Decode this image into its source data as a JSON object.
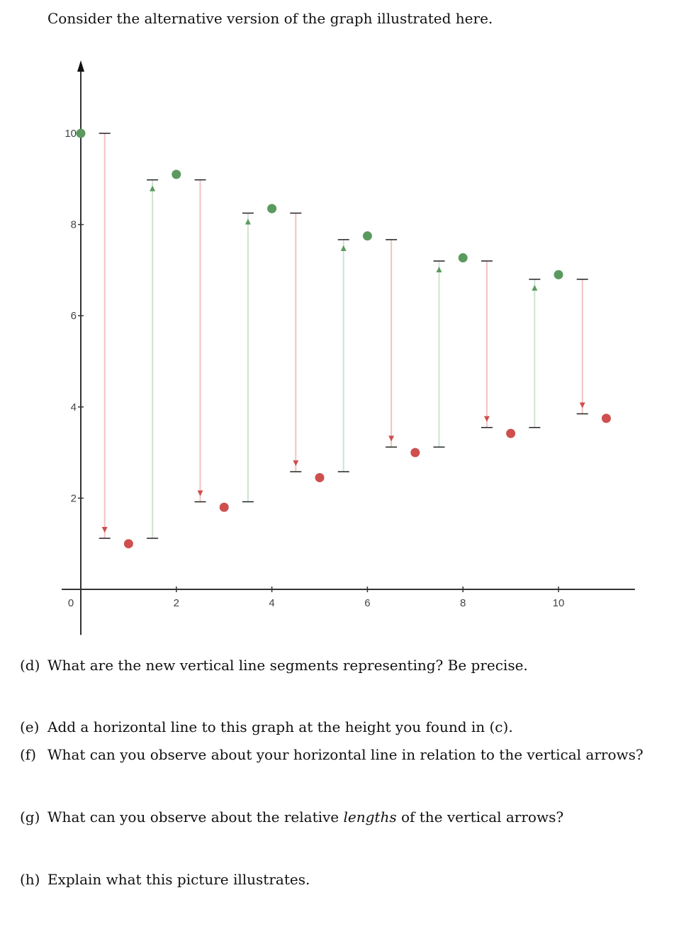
{
  "intro": "Consider the alternative version of the graph illustrated here.",
  "questions": [
    {
      "label": "(d)",
      "pre": "What are the new vertical line segments representing? Be precise.",
      "em": "",
      "post": ""
    },
    {
      "label": "(e)",
      "pre": "Add a horizontal line to this graph at the height you found in (c).",
      "em": "",
      "post": ""
    },
    {
      "label": "(f)",
      "pre": "What can you observe about your horizontal line in relation to the vertical arrows?",
      "em": "",
      "post": ""
    },
    {
      "label": "(g)",
      "pre": "What can you observe about the relative ",
      "em": "lengths",
      "post": " of the vertical arrows?"
    },
    {
      "label": "(h)",
      "pre": "Explain what this picture illustrates.",
      "em": "",
      "post": ""
    }
  ],
  "colors": {
    "up": "#5a9a5e",
    "down": "#cf4f4f",
    "up_line": "#cfe3cf",
    "down_line": "#f2c2c2",
    "axis": "#333333"
  },
  "chart_data": {
    "type": "scatter",
    "xlim": [
      -0.4,
      11.6
    ],
    "ylim": [
      -1,
      11.6
    ],
    "x_ticks": [
      {
        "value": 0,
        "label": "0"
      },
      {
        "value": 2,
        "label": "2"
      },
      {
        "value": 4,
        "label": "4"
      },
      {
        "value": 6,
        "label": "6"
      },
      {
        "value": 8,
        "label": "8"
      },
      {
        "value": 10,
        "label": "10"
      }
    ],
    "y_ticks": [
      {
        "value": 2,
        "label": "2"
      },
      {
        "value": 4,
        "label": "4"
      },
      {
        "value": 6,
        "label": "6"
      },
      {
        "value": 8,
        "label": "8"
      },
      {
        "value": 10,
        "label": "10"
      }
    ],
    "points_green": [
      [
        0,
        10
      ],
      [
        2,
        9.1
      ],
      [
        4,
        8.35
      ],
      [
        6,
        7.75
      ],
      [
        8,
        7.27
      ],
      [
        10,
        6.9
      ]
    ],
    "points_red": [
      [
        1,
        1.0
      ],
      [
        3,
        1.8
      ],
      [
        5,
        2.45
      ],
      [
        7,
        3.0
      ],
      [
        9,
        3.42
      ],
      [
        11,
        3.75
      ]
    ],
    "segments": [
      {
        "x": 0.5,
        "y_from": 10.0,
        "y_to": 1.12,
        "dir": "down"
      },
      {
        "x": 1.5,
        "y_from": 1.12,
        "y_to": 8.98,
        "dir": "up"
      },
      {
        "x": 2.5,
        "y_from": 8.98,
        "y_to": 1.92,
        "dir": "down"
      },
      {
        "x": 3.5,
        "y_from": 1.92,
        "y_to": 8.25,
        "dir": "up"
      },
      {
        "x": 4.5,
        "y_from": 8.25,
        "y_to": 2.58,
        "dir": "down"
      },
      {
        "x": 5.5,
        "y_from": 2.58,
        "y_to": 7.67,
        "dir": "up"
      },
      {
        "x": 6.5,
        "y_from": 7.67,
        "y_to": 3.12,
        "dir": "down"
      },
      {
        "x": 7.5,
        "y_from": 3.12,
        "y_to": 7.2,
        "dir": "up"
      },
      {
        "x": 8.5,
        "y_from": 7.2,
        "y_to": 3.55,
        "dir": "down"
      },
      {
        "x": 9.5,
        "y_from": 3.55,
        "y_to": 6.8,
        "dir": "up"
      },
      {
        "x": 10.5,
        "y_from": 6.8,
        "y_to": 3.85,
        "dir": "down"
      }
    ]
  }
}
